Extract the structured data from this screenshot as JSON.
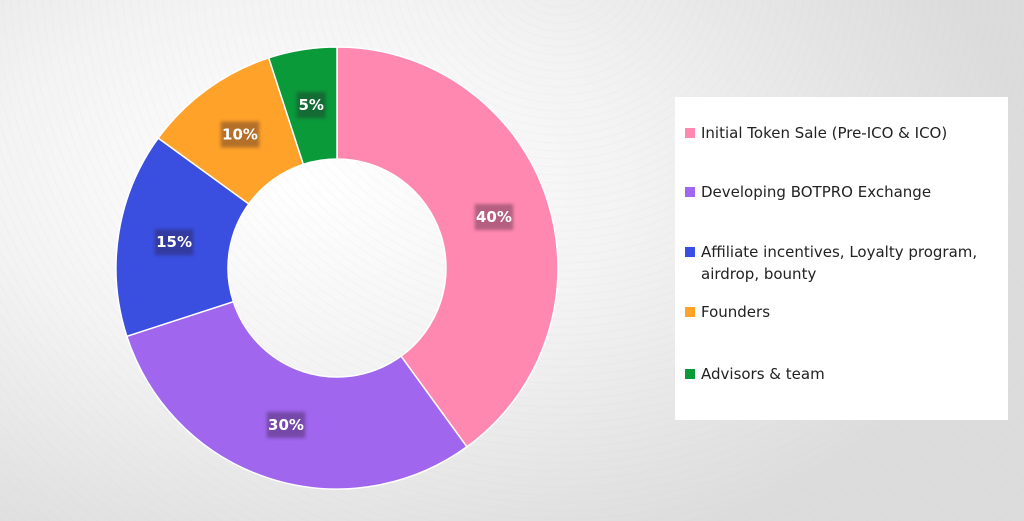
{
  "chart_data": {
    "type": "pie",
    "donut": true,
    "slices": [
      {
        "name": "Initial Token Sale (Pre-ICO & ICO)",
        "value": 40,
        "label": "40%",
        "color": "#ff88b0"
      },
      {
        "name": "Developing BOTPRO Exchange",
        "value": 30,
        "label": "30%",
        "color": "#a066ee"
      },
      {
        "name": "Affiliate incentives, Loyalty program, airdrop, bounty",
        "value": 15,
        "label": "15%",
        "color": "#3a4fe0"
      },
      {
        "name": "Founders",
        "value": 10,
        "label": "10%",
        "color": "#ffa22a"
      },
      {
        "name": "Advisors & team",
        "value": 5,
        "label": "5%",
        "color": "#0a9a3a"
      }
    ],
    "legend_position": "right"
  },
  "legend": {
    "items": [
      {
        "label": "Initial Token Sale (Pre-ICO & ICO)",
        "color": "#ff88b0"
      },
      {
        "label": "Developing BOTPRO Exchange",
        "color": "#a066ee"
      },
      {
        "label": "Affiliate incentives, Loyalty program, airdrop, bounty",
        "color": "#3a4fe0"
      },
      {
        "label": "Founders",
        "color": "#ffa22a"
      },
      {
        "label": "Advisors & team",
        "color": "#0a9a3a"
      }
    ]
  }
}
